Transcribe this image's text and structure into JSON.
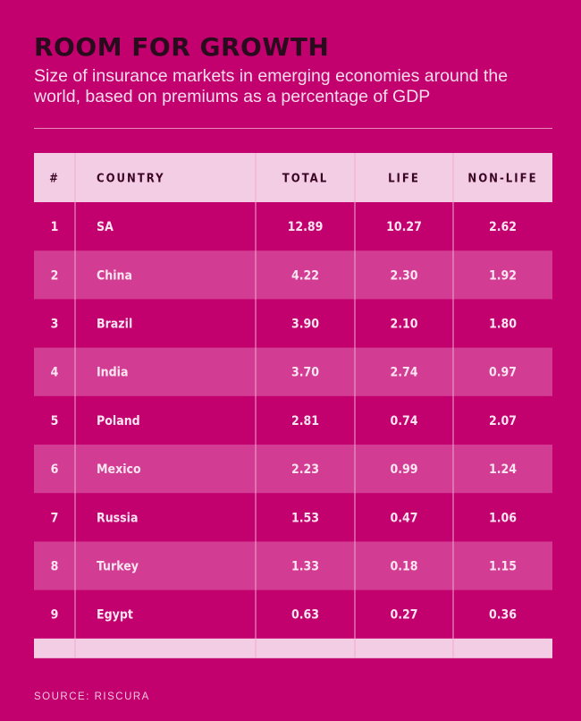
{
  "title": "ROOM FOR GROWTH",
  "subtitle": "Size of insurance markets in emerging economies around the world, based on premiums as a percentage of GDP",
  "source": "SOURCE: RISCURA",
  "colors": {
    "background": "#c2006e",
    "header_band": "#f3cde3",
    "row_alt": "#d23d93",
    "divider": "#f0a9d0",
    "title": "#2a0a1d"
  },
  "chart_data": {
    "type": "table",
    "columns": [
      "#",
      "COUNTRY",
      "TOTAL",
      "LIFE",
      "NON-LIFE"
    ],
    "rows": [
      [
        "1",
        "SA",
        "12.89",
        "10.27",
        "2.62"
      ],
      [
        "2",
        "China",
        "4.22",
        "2.30",
        "1.92"
      ],
      [
        "3",
        "Brazil",
        "3.90",
        "2.10",
        "1.80"
      ],
      [
        "4",
        "India",
        "3.70",
        "2.74",
        "0.97"
      ],
      [
        "5",
        "Poland",
        "2.81",
        "0.74",
        "2.07"
      ],
      [
        "6",
        "Mexico",
        "2.23",
        "0.99",
        "1.24"
      ],
      [
        "7",
        "Russia",
        "1.53",
        "0.47",
        "1.06"
      ],
      [
        "8",
        "Turkey",
        "1.33",
        "0.18",
        "1.15"
      ],
      [
        "9",
        "Egypt",
        "0.63",
        "0.27",
        "0.36"
      ]
    ]
  }
}
